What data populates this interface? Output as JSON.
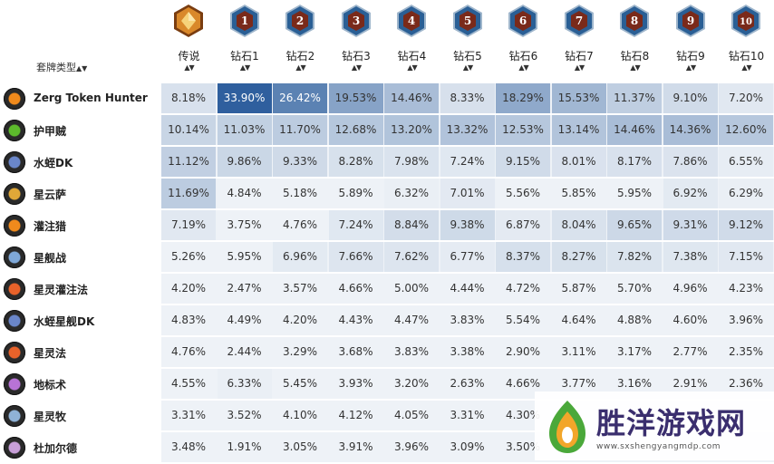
{
  "header": {
    "deck_type_label": "套牌类型",
    "sort_glyph": "▲▼",
    "columns": [
      {
        "label": "传说",
        "badge": "",
        "icon": "legend-rank-icon"
      },
      {
        "label": "钻石1",
        "badge": "1",
        "icon": "diamond-rank-icon"
      },
      {
        "label": "钻石2",
        "badge": "2",
        "icon": "diamond-rank-icon"
      },
      {
        "label": "钻石3",
        "badge": "3",
        "icon": "diamond-rank-icon"
      },
      {
        "label": "钻石4",
        "badge": "4",
        "icon": "diamond-rank-icon"
      },
      {
        "label": "钻石5",
        "badge": "5",
        "icon": "diamond-rank-icon"
      },
      {
        "label": "钻石6",
        "badge": "6",
        "icon": "diamond-rank-icon"
      },
      {
        "label": "钻石7",
        "badge": "7",
        "icon": "diamond-rank-icon"
      },
      {
        "label": "钻石8",
        "badge": "8",
        "icon": "diamond-rank-icon"
      },
      {
        "label": "钻石9",
        "badge": "9",
        "icon": "diamond-rank-icon"
      },
      {
        "label": "钻石10",
        "badge": "10",
        "icon": "diamond-rank-icon"
      }
    ]
  },
  "rows": [
    {
      "name": "Zerg Token Hunter",
      "icon": "hunter-class-icon",
      "icon_color": "#f08a1c",
      "values": [
        "8.18%",
        "33.90%",
        "26.42%",
        "19.53%",
        "14.46%",
        "8.33%",
        "18.29%",
        "15.53%",
        "11.37%",
        "9.10%",
        "7.20%"
      ]
    },
    {
      "name": "护甲贼",
      "icon": "rogue-class-icon",
      "icon_color": "#5dbb2c",
      "values": [
        "10.14%",
        "11.03%",
        "11.70%",
        "12.68%",
        "13.20%",
        "13.32%",
        "12.53%",
        "13.14%",
        "14.46%",
        "14.36%",
        "12.60%"
      ]
    },
    {
      "name": "水蛭DK",
      "icon": "death-knight-class-icon",
      "icon_color": "#6a86c9",
      "values": [
        "11.12%",
        "9.86%",
        "9.33%",
        "8.28%",
        "7.98%",
        "7.24%",
        "9.15%",
        "8.01%",
        "8.17%",
        "7.86%",
        "6.55%"
      ]
    },
    {
      "name": "星云萨",
      "icon": "shaman-class-icon",
      "icon_color": "#e0a838",
      "values": [
        "11.69%",
        "4.84%",
        "5.18%",
        "5.89%",
        "6.32%",
        "7.01%",
        "5.56%",
        "5.85%",
        "5.95%",
        "6.92%",
        "6.29%"
      ]
    },
    {
      "name": "灌注猎",
      "icon": "hunter-class-icon",
      "icon_color": "#f08a1c",
      "values": [
        "7.19%",
        "3.75%",
        "4.76%",
        "7.24%",
        "8.84%",
        "9.38%",
        "6.87%",
        "8.04%",
        "9.65%",
        "9.31%",
        "9.12%"
      ]
    },
    {
      "name": "星舰战",
      "icon": "warrior-class-icon",
      "icon_color": "#7fa8d8",
      "values": [
        "5.26%",
        "5.95%",
        "6.96%",
        "7.66%",
        "7.62%",
        "6.77%",
        "8.37%",
        "8.27%",
        "7.82%",
        "7.38%",
        "7.15%"
      ]
    },
    {
      "name": "星灵灌注法",
      "icon": "mage-class-icon",
      "icon_color": "#e8622a",
      "values": [
        "4.20%",
        "2.47%",
        "3.57%",
        "4.66%",
        "5.00%",
        "4.44%",
        "4.72%",
        "5.87%",
        "5.70%",
        "4.96%",
        "4.23%"
      ]
    },
    {
      "name": "水蛭星舰DK",
      "icon": "death-knight-class-icon",
      "icon_color": "#6a86c9",
      "values": [
        "4.83%",
        "4.49%",
        "4.20%",
        "4.43%",
        "4.47%",
        "3.83%",
        "5.54%",
        "4.64%",
        "4.88%",
        "4.60%",
        "3.96%"
      ]
    },
    {
      "name": "星灵法",
      "icon": "mage-class-icon",
      "icon_color": "#e8622a",
      "values": [
        "4.76%",
        "2.44%",
        "3.29%",
        "3.68%",
        "3.83%",
        "3.38%",
        "2.90%",
        "3.11%",
        "3.17%",
        "2.77%",
        "2.35%"
      ]
    },
    {
      "name": "地标术",
      "icon": "warlock-class-icon",
      "icon_color": "#b873d6",
      "values": [
        "4.55%",
        "6.33%",
        "5.45%",
        "3.93%",
        "3.20%",
        "2.63%",
        "4.66%",
        "3.77%",
        "3.16%",
        "2.91%",
        "2.36%"
      ]
    },
    {
      "name": "星灵牧",
      "icon": "priest-class-icon",
      "icon_color": "#8fb2d6",
      "values": [
        "3.31%",
        "3.52%",
        "4.10%",
        "4.12%",
        "4.05%",
        "3.31%",
        "4.30%",
        "",
        "",
        "",
        ""
      ]
    },
    {
      "name": "杜加尔德",
      "icon": "paladin-class-icon",
      "icon_color": "#c89fd8",
      "values": [
        "3.48%",
        "1.91%",
        "3.05%",
        "3.91%",
        "3.96%",
        "3.09%",
        "3.50%",
        "",
        "",
        "",
        ""
      ]
    }
  ],
  "watermark": {
    "text": "胜洋游戏网",
    "url": "www.sxshengyangmdp.com",
    "icon": "watermark-logo-icon"
  },
  "colors": {
    "cell_base": "#eef2f7",
    "cell_max": "#2e5f9e",
    "badge_frame": "#2a5f95",
    "legend_gold": "#d9882a"
  }
}
